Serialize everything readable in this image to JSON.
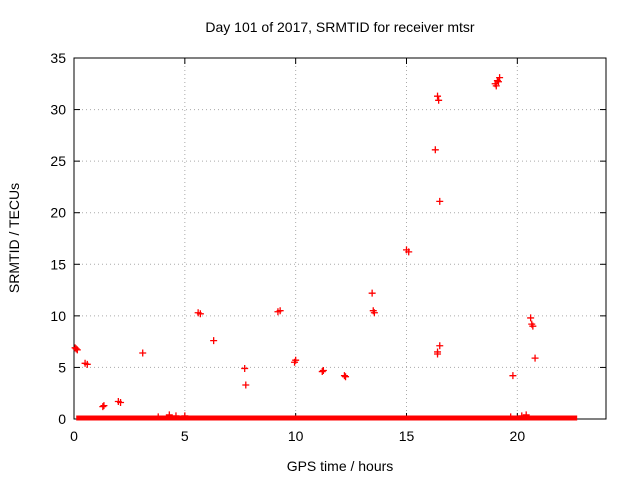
{
  "chart_data": {
    "type": "scatter",
    "title": "Day 101 of 2017, SRMTID for receiver mtsr",
    "xlabel": "GPS time / hours",
    "ylabel": "SRMTID / TECUs",
    "xlim": [
      0,
      24.0
    ],
    "ylim": [
      0,
      35
    ],
    "xticks": [
      0,
      5,
      10,
      15,
      20
    ],
    "yticks": [
      0,
      5,
      10,
      15,
      20,
      25,
      30,
      35
    ],
    "grid": true,
    "marker": "+",
    "color": "#ff0000",
    "baseline": {
      "x_start": 0.1,
      "x_end": 22.7,
      "y": 0.1
    },
    "series": [
      {
        "name": "SRMTID",
        "x": [
          0.05,
          0.1,
          0.15,
          0.5,
          0.6,
          1.3,
          1.35,
          2.0,
          2.1,
          3.1,
          5.6,
          5.7,
          6.3,
          7.7,
          7.75,
          9.2,
          9.3,
          9.95,
          10.0,
          11.2,
          11.25,
          12.2,
          12.25,
          13.45,
          13.5,
          13.55,
          15.0,
          15.1,
          16.3,
          16.4,
          16.45,
          16.5,
          16.4,
          16.5,
          16.4,
          19.0,
          19.1,
          19.2,
          19.05,
          19.15,
          19.8,
          20.6,
          20.7,
          20.65,
          20.8,
          3.8,
          4.3,
          4.6,
          5.0,
          19.7,
          20.2,
          20.4
        ],
        "y": [
          6.9,
          6.8,
          6.7,
          5.4,
          5.3,
          1.2,
          1.3,
          1.7,
          1.6,
          6.4,
          10.3,
          10.2,
          7.6,
          4.9,
          3.3,
          10.4,
          10.5,
          5.5,
          5.7,
          4.6,
          4.7,
          4.2,
          4.1,
          12.2,
          10.5,
          10.3,
          16.4,
          16.2,
          26.1,
          31.3,
          30.9,
          21.1,
          6.3,
          7.1,
          6.5,
          32.5,
          32.8,
          33.1,
          32.3,
          32.7,
          4.2,
          9.8,
          9.0,
          9.2,
          5.9,
          0.2,
          0.4,
          0.3,
          0.3,
          0.2,
          0.3,
          0.4
        ]
      }
    ]
  }
}
